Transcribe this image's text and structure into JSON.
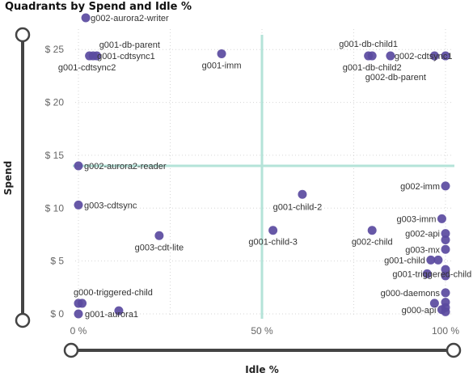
{
  "chart_data": {
    "type": "scatter",
    "title": "Quadrants by Spend and Idle %",
    "xlabel": "Idle %",
    "ylabel": "Spend",
    "xlim": [
      0,
      100
    ],
    "ylim": [
      0,
      28
    ],
    "x_ticks": [
      {
        "value": 0,
        "label": "0 %"
      },
      {
        "value": 50,
        "label": "50 %"
      },
      {
        "value": 100,
        "label": "100 %"
      }
    ],
    "y_ticks": [
      {
        "value": 0,
        "label": "$ 0"
      },
      {
        "value": 5,
        "label": "$ 5"
      },
      {
        "value": 10,
        "label": "$ 10"
      },
      {
        "value": 15,
        "label": "$ 15"
      },
      {
        "value": 20,
        "label": "$ 20"
      },
      {
        "value": 25,
        "label": "$ 25"
      }
    ],
    "reference_lines": {
      "x": 50,
      "y": 14
    },
    "grid": true,
    "colors": {
      "point": "#5a4a9f",
      "reference_line": "#b4e3d8"
    },
    "points": [
      {
        "label": "g002-aurora2-writer",
        "x": 2,
        "y": 28
      },
      {
        "label": "g001-db-parent",
        "x": 5,
        "y": 24.4
      },
      {
        "label": "g001-cdtsync1",
        "x": 4,
        "y": 24.4
      },
      {
        "label": "g001-cdtsync2",
        "x": 3,
        "y": 24.4
      },
      {
        "label": "g001-imm",
        "x": 39,
        "y": 24.6
      },
      {
        "label": "g001-db-child1",
        "x": 79,
        "y": 24.4
      },
      {
        "label": "g002-cdtsync1",
        "x": 85,
        "y": 24.4
      },
      {
        "label": "g001-db-child2",
        "x": 80,
        "y": 24.4
      },
      {
        "label": "g002-db-parent",
        "x": 97,
        "y": 24.4
      },
      {
        "label": "",
        "x": 100,
        "y": 24.4
      },
      {
        "label": "g002-aurora2-reader",
        "x": 0,
        "y": 14
      },
      {
        "label": "g003-cdtsync",
        "x": 0,
        "y": 10.3
      },
      {
        "label": "g003-cdt-lite",
        "x": 22,
        "y": 7.4
      },
      {
        "label": "g001-child-2",
        "x": 61,
        "y": 11.3
      },
      {
        "label": "g001-child-3",
        "x": 53,
        "y": 7.9
      },
      {
        "label": "g002-imm",
        "x": 100,
        "y": 12.1
      },
      {
        "label": "g003-imm",
        "x": 99,
        "y": 9
      },
      {
        "label": "g002-api",
        "x": 100,
        "y": 7.6
      },
      {
        "label": "g002-child",
        "x": 80,
        "y": 7.9
      },
      {
        "label": "",
        "x": 100,
        "y": 7
      },
      {
        "label": "g003-mx",
        "x": 100,
        "y": 6.1
      },
      {
        "label": "g001-child",
        "x": 96,
        "y": 5.1
      },
      {
        "label": "",
        "x": 98,
        "y": 5.1
      },
      {
        "label": "g001-triggered-child",
        "x": 95,
        "y": 3.8
      },
      {
        "label": "",
        "x": 100,
        "y": 4.2
      },
      {
        "label": "",
        "x": 100,
        "y": 3.6
      },
      {
        "label": "g000-daemons",
        "x": 100,
        "y": 2
      },
      {
        "label": "",
        "x": 97,
        "y": 1
      },
      {
        "label": "g000-api",
        "x": 99,
        "y": 0.4
      },
      {
        "label": "",
        "x": 100,
        "y": 1.1
      },
      {
        "label": "",
        "x": 100,
        "y": 0.6
      },
      {
        "label": "",
        "x": 100,
        "y": 0.2
      },
      {
        "label": "g000-triggered-child",
        "x": 0,
        "y": 1
      },
      {
        "label": "",
        "x": 1,
        "y": 1
      },
      {
        "label": "g001-aurora1",
        "x": 0,
        "y": 0
      },
      {
        "label": "",
        "x": 11,
        "y": 0.3
      }
    ]
  }
}
